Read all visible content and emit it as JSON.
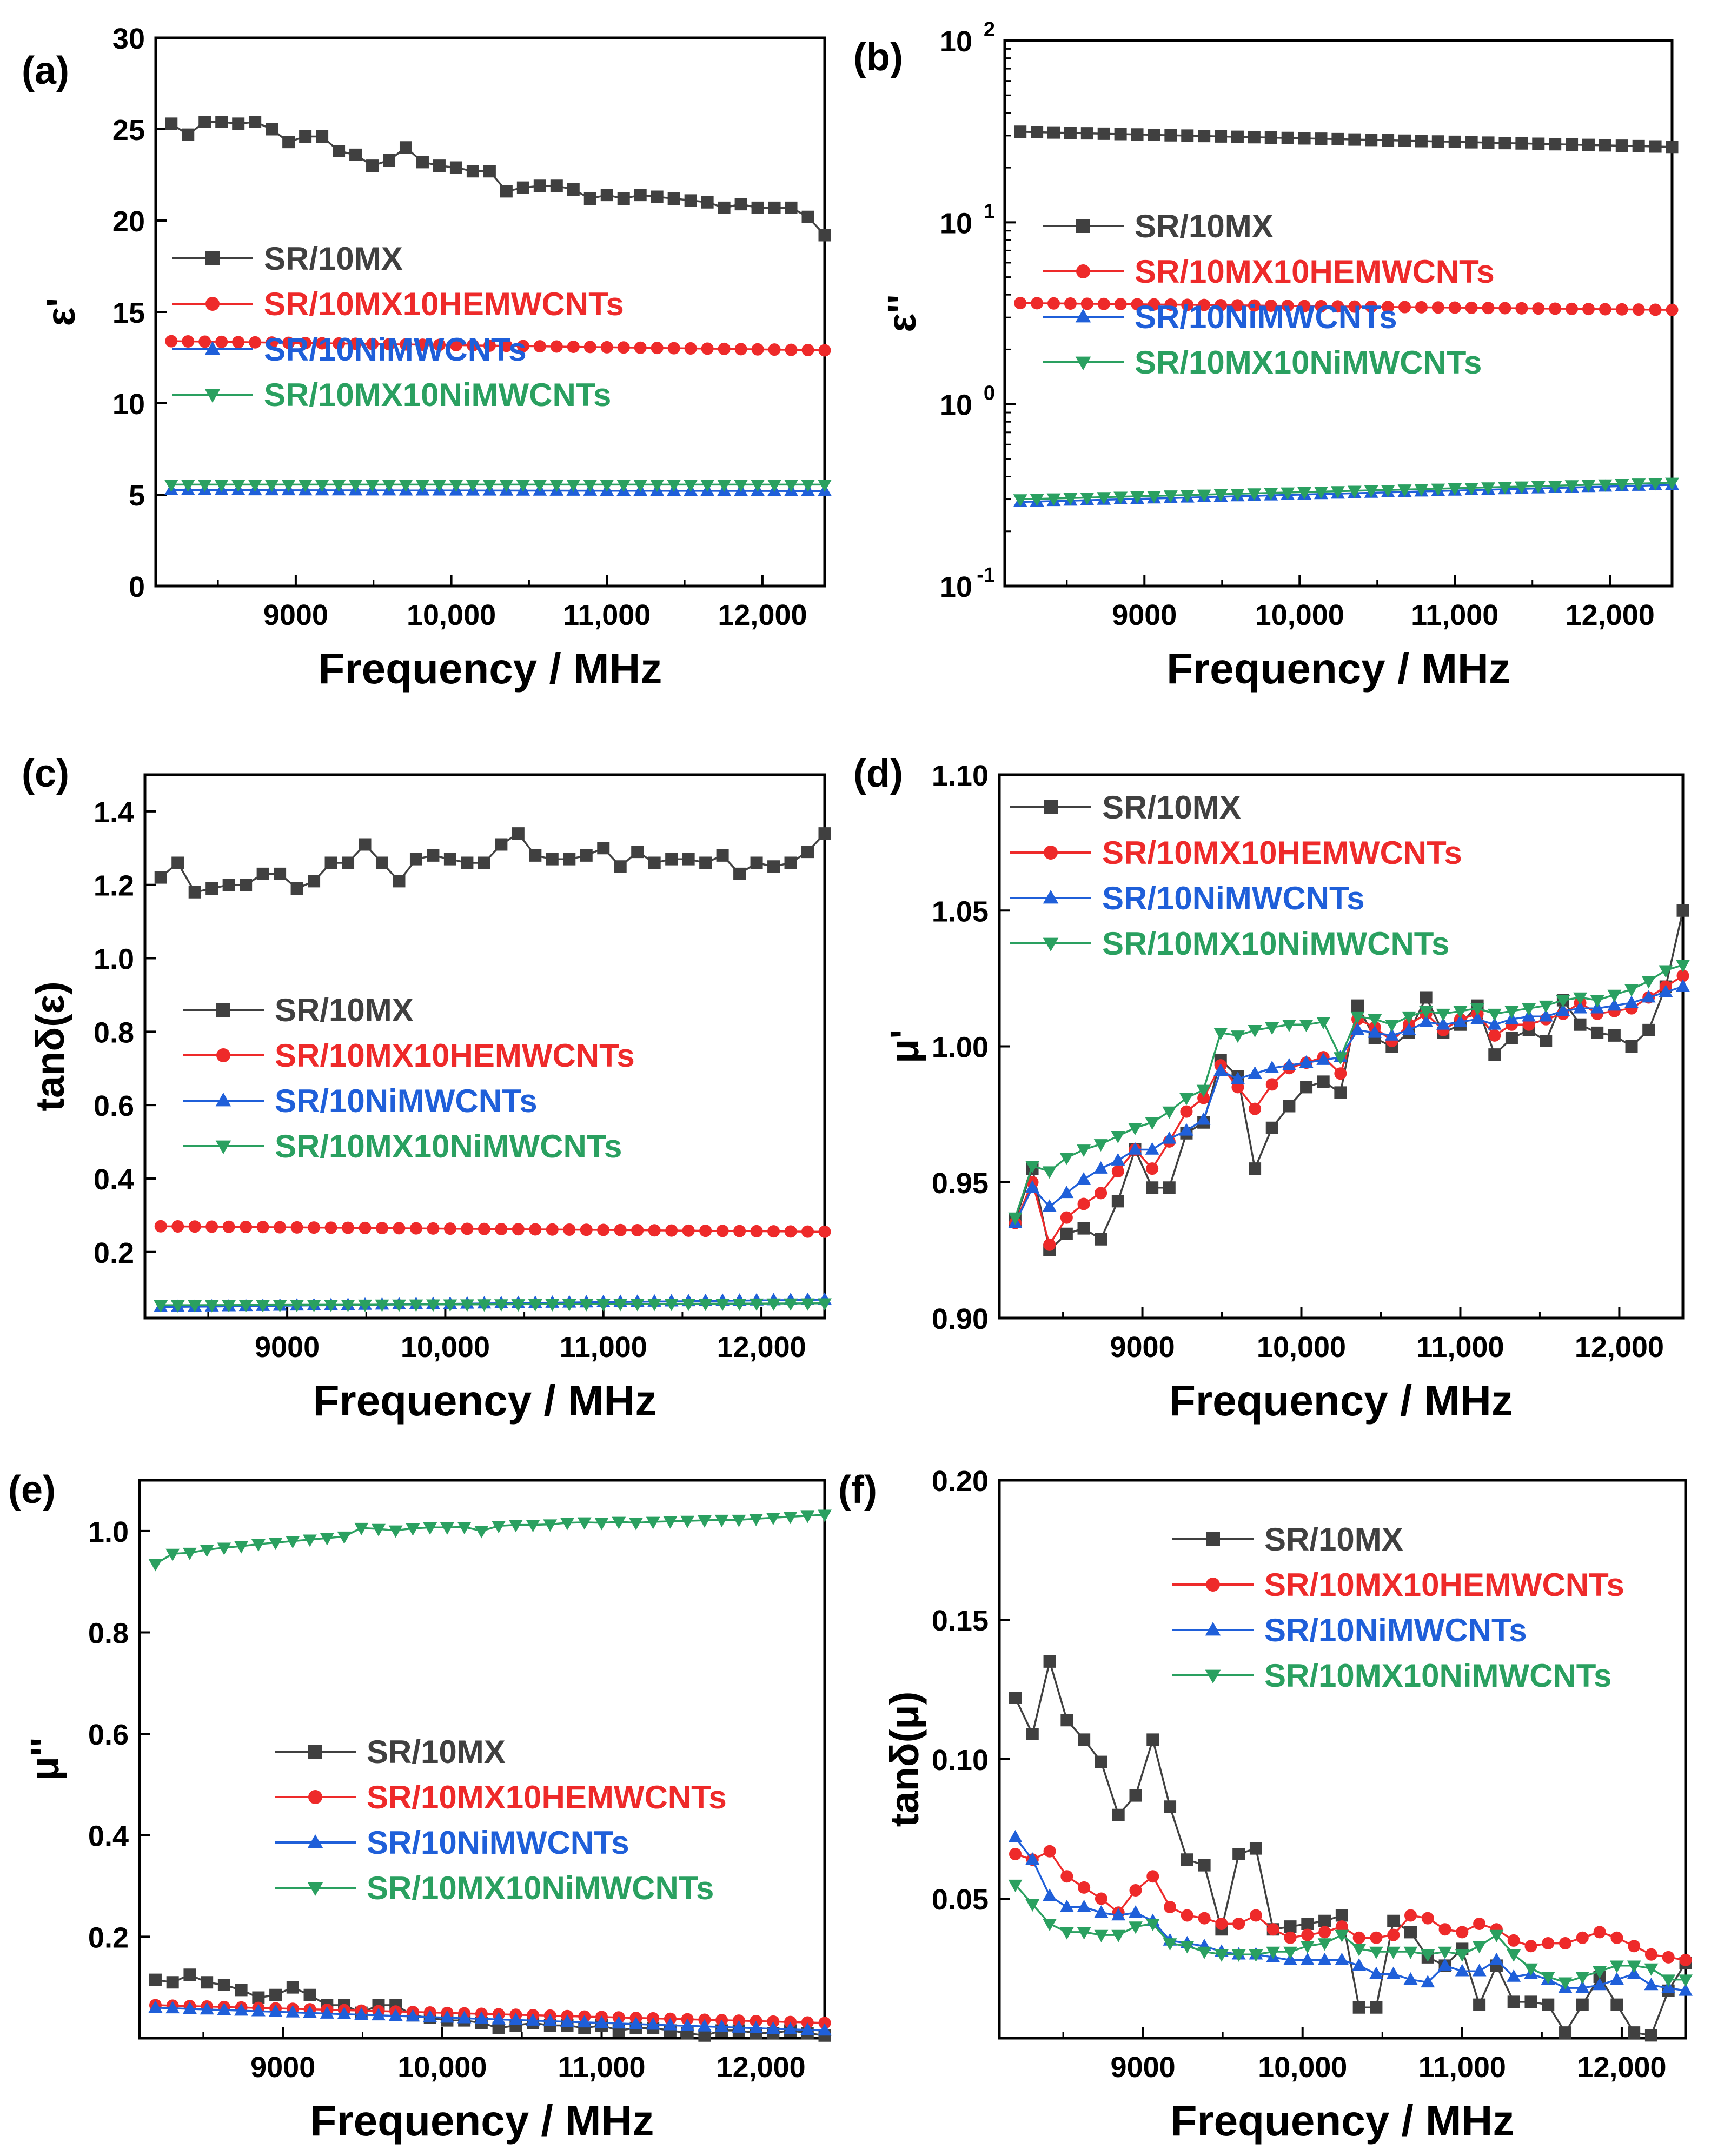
{
  "figure": {
    "colors": {
      "SR/10MX": "#404040",
      "SR/10MX10HEMWCNTs": "#ee2a2a",
      "SR/10NiMWCNTs": "#1f5fd9",
      "SR/10MX10NiMWCNTs": "#2aa060"
    },
    "series_names": [
      "SR/10MX",
      "SR/10MX10HEMWCNTs",
      "SR/10NiMWCNTs",
      "SR/10MX10NiMWCNTs"
    ]
  },
  "chart_data": [
    {
      "id": "a",
      "type": "line",
      "panel_label": "(a)",
      "title": "",
      "xlabel": "Frequency / MHz",
      "ylabel": "ε'",
      "xlim": [
        8100,
        12400
      ],
      "ylim": [
        0,
        30
      ],
      "yscale": "linear",
      "x_ticks": [
        9000,
        10000,
        11000,
        12000
      ],
      "x_tick_labels": [
        "9000",
        "10,000",
        "11,000",
        "12,000"
      ],
      "y_ticks": [
        0,
        5,
        10,
        15,
        20,
        25,
        30
      ],
      "y_tick_labels": [
        "0",
        "5",
        "10",
        "15",
        "20",
        "25",
        "30"
      ],
      "legend_position": "middle-left",
      "x": {
        "start": 8200,
        "end": 12400,
        "count": 40
      },
      "series": [
        {
          "name": "SR/10MX",
          "marker": "square",
          "values": [
            25.3,
            24.7,
            25.4,
            25.4,
            25.3,
            25.4,
            25.0,
            24.3,
            24.6,
            24.6,
            23.8,
            23.6,
            23.0,
            23.3,
            24.0,
            23.2,
            23.0,
            22.9,
            22.7,
            22.7,
            21.6,
            21.8,
            21.9,
            21.9,
            21.7,
            21.2,
            21.4,
            21.2,
            21.4,
            21.3,
            21.2,
            21.1,
            21.0,
            20.7,
            20.9,
            20.7,
            20.7,
            20.7,
            20.2,
            19.2
          ]
        },
        {
          "name": "SR/10MX10HEMWCNTs",
          "marker": "circle",
          "start": 13.4,
          "end": 12.9
        },
        {
          "name": "SR/10NiMWCNTs",
          "marker": "triangle-up",
          "start": 5.25,
          "end": 5.2
        },
        {
          "name": "SR/10MX10NiMWCNTs",
          "marker": "triangle-down",
          "start": 5.55,
          "end": 5.55
        }
      ]
    },
    {
      "id": "b",
      "type": "line",
      "panel_label": "(b)",
      "title": "",
      "xlabel": "Frequency / MHz",
      "ylabel": "ε''",
      "xlim": [
        8100,
        12400
      ],
      "ylim": [
        0.1,
        100
      ],
      "yscale": "log",
      "x_ticks": [
        9000,
        10000,
        11000,
        12000
      ],
      "x_tick_labels": [
        "9000",
        "10,000",
        "11,000",
        "12,000"
      ],
      "y_ticks": [
        0.1,
        1,
        10,
        100
      ],
      "y_tick_labels": [
        "10",
        "10",
        "10",
        "10"
      ],
      "y_tick_exponents": [
        "-1",
        "0",
        "1",
        "2"
      ],
      "legend_position": "middle-left",
      "x": {
        "start": 8200,
        "end": 12400,
        "count": 40
      },
      "series": [
        {
          "name": "SR/10MX",
          "marker": "square",
          "start": 31.5,
          "end": 26.0
        },
        {
          "name": "SR/10MX10HEMWCNTs",
          "marker": "circle",
          "start": 3.6,
          "end": 3.3
        },
        {
          "name": "SR/10NiMWCNTs",
          "marker": "triangle-up",
          "start": 0.29,
          "end": 0.36
        },
        {
          "name": "SR/10MX10NiMWCNTs",
          "marker": "triangle-down",
          "start": 0.3,
          "end": 0.37
        }
      ]
    },
    {
      "id": "c",
      "type": "line",
      "panel_label": "(c)",
      "title": "",
      "xlabel": "Frequency / MHz",
      "ylabel": "tanδ(ε)",
      "xlim": [
        8100,
        12400
      ],
      "ylim": [
        0.02,
        1.5
      ],
      "yscale": "linear",
      "x_ticks": [
        9000,
        10000,
        11000,
        12000
      ],
      "x_tick_labels": [
        "9000",
        "10,000",
        "11,000",
        "12,000"
      ],
      "y_ticks": [
        0.2,
        0.4,
        0.6,
        0.8,
        1.0,
        1.2,
        1.4
      ],
      "y_tick_labels": [
        "0.2",
        "0.4",
        "0.6",
        "0.8",
        "1.0",
        "1.2",
        "1.4"
      ],
      "legend_position": "middle-left",
      "x": {
        "start": 8200,
        "end": 12400,
        "count": 40
      },
      "series": [
        {
          "name": "SR/10MX",
          "marker": "square",
          "values": [
            1.22,
            1.26,
            1.18,
            1.19,
            1.2,
            1.2,
            1.23,
            1.23,
            1.19,
            1.21,
            1.26,
            1.26,
            1.31,
            1.26,
            1.21,
            1.27,
            1.28,
            1.27,
            1.26,
            1.26,
            1.31,
            1.34,
            1.28,
            1.27,
            1.27,
            1.28,
            1.3,
            1.25,
            1.29,
            1.26,
            1.27,
            1.27,
            1.26,
            1.28,
            1.23,
            1.26,
            1.25,
            1.26,
            1.29,
            1.34
          ]
        },
        {
          "name": "SR/10MX10HEMWCNTs",
          "marker": "circle",
          "start": 0.27,
          "end": 0.255
        },
        {
          "name": "SR/10NiMWCNTs",
          "marker": "triangle-up",
          "start": 0.05,
          "end": 0.07
        },
        {
          "name": "SR/10MX10NiMWCNTs",
          "marker": "triangle-down",
          "start": 0.055,
          "end": 0.06
        }
      ]
    },
    {
      "id": "d",
      "type": "line",
      "panel_label": "(d)",
      "title": "",
      "xlabel": "Frequency / MHz",
      "ylabel": "μ'",
      "xlim": [
        8100,
        12400
      ],
      "ylim": [
        0.9,
        1.1
      ],
      "yscale": "linear",
      "x_ticks": [
        9000,
        10000,
        11000,
        12000
      ],
      "x_tick_labels": [
        "9000",
        "10,000",
        "11,000",
        "12,000"
      ],
      "y_ticks": [
        0.9,
        0.95,
        1.0,
        1.05,
        1.1
      ],
      "y_tick_labels": [
        "0.90",
        "0.95",
        "1.00",
        "1.05",
        "1.10"
      ],
      "legend_position": "top-left",
      "x": {
        "start": 8200,
        "end": 12400,
        "count": 40
      },
      "series": [
        {
          "name": "SR/10MX",
          "marker": "square",
          "values": [
            0.936,
            0.955,
            0.925,
            0.931,
            0.933,
            0.929,
            0.943,
            0.962,
            0.948,
            0.948,
            0.968,
            0.972,
            0.995,
            0.989,
            0.955,
            0.97,
            0.978,
            0.985,
            0.987,
            0.983,
            1.015,
            1.003,
            1.0,
            1.005,
            1.018,
            1.005,
            1.008,
            1.015,
            0.997,
            1.003,
            1.006,
            1.002,
            1.017,
            1.008,
            1.005,
            1.004,
            1.0,
            1.006,
            1.022,
            1.05
          ]
        },
        {
          "name": "SR/10MX10HEMWCNTs",
          "marker": "circle",
          "values": [
            0.935,
            0.95,
            0.927,
            0.937,
            0.942,
            0.946,
            0.954,
            0.962,
            0.955,
            0.965,
            0.976,
            0.981,
            0.993,
            0.985,
            0.977,
            0.986,
            0.992,
            0.994,
            0.996,
            0.99,
            1.01,
            1.007,
            1.002,
            1.008,
            1.012,
            1.006,
            1.01,
            1.012,
            1.004,
            1.008,
            1.008,
            1.01,
            1.012,
            1.016,
            1.012,
            1.013,
            1.014,
            1.018,
            1.022,
            1.026
          ]
        },
        {
          "name": "SR/10NiMWCNTs",
          "marker": "triangle-up",
          "values": [
            0.935,
            0.948,
            0.941,
            0.946,
            0.951,
            0.955,
            0.958,
            0.962,
            0.962,
            0.966,
            0.969,
            0.973,
            0.991,
            0.988,
            0.99,
            0.992,
            0.993,
            0.994,
            0.995,
            0.996,
            1.006,
            1.005,
            1.004,
            1.006,
            1.009,
            1.008,
            1.009,
            1.01,
            1.008,
            1.01,
            1.011,
            1.011,
            1.013,
            1.014,
            1.014,
            1.015,
            1.016,
            1.018,
            1.02,
            1.022
          ]
        },
        {
          "name": "SR/10MX10NiMWCNTs",
          "marker": "triangle-down",
          "values": [
            0.937,
            0.956,
            0.954,
            0.959,
            0.962,
            0.964,
            0.967,
            0.97,
            0.972,
            0.976,
            0.981,
            0.984,
            1.005,
            1.004,
            1.006,
            1.007,
            1.008,
            1.008,
            1.009,
            0.996,
            1.011,
            1.01,
            1.008,
            1.011,
            1.013,
            1.012,
            1.013,
            1.014,
            1.012,
            1.013,
            1.014,
            1.015,
            1.017,
            1.018,
            1.017,
            1.019,
            1.021,
            1.024,
            1.028,
            1.03
          ]
        }
      ]
    },
    {
      "id": "e",
      "type": "line",
      "panel_label": "(e)",
      "title": "",
      "xlabel": "Frequency / MHz",
      "ylabel": "μ''",
      "xlim": [
        8100,
        12400
      ],
      "ylim": [
        0.0,
        1.1
      ],
      "yscale": "linear",
      "x_ticks": [
        9000,
        10000,
        11000,
        12000
      ],
      "x_tick_labels": [
        "9000",
        "10,000",
        "11,000",
        "12,000"
      ],
      "y_ticks": [
        0.2,
        0.4,
        0.6,
        0.8,
        1.0
      ],
      "y_tick_labels": [
        "0.2",
        "0.4",
        "0.6",
        "0.8",
        "1.0"
      ],
      "legend_position": "center",
      "x": {
        "start": 8200,
        "end": 12400,
        "count": 40
      },
      "series": [
        {
          "name": "SR/10MX",
          "marker": "square",
          "values": [
            0.115,
            0.11,
            0.125,
            0.11,
            0.105,
            0.095,
            0.08,
            0.085,
            0.1,
            0.085,
            0.065,
            0.065,
            0.05,
            0.065,
            0.065,
            0.045,
            0.04,
            0.035,
            0.035,
            0.03,
            0.02,
            0.025,
            0.03,
            0.025,
            0.025,
            0.02,
            0.025,
            0.015,
            0.02,
            0.02,
            0.015,
            0.01,
            0.005,
            0.015,
            0.015,
            0.01,
            0.01,
            0.015,
            0.01,
            0.005
          ]
        },
        {
          "name": "SR/10MX10HEMWCNTs",
          "marker": "circle",
          "start": 0.065,
          "end": 0.03
        },
        {
          "name": "SR/10NiMWCNTs",
          "marker": "triangle-up",
          "start": 0.06,
          "end": 0.015
        },
        {
          "name": "SR/10MX10NiMWCNTs",
          "marker": "triangle-down",
          "values": [
            0.935,
            0.955,
            0.957,
            0.963,
            0.967,
            0.97,
            0.974,
            0.977,
            0.98,
            0.983,
            0.986,
            0.989,
            1.006,
            1.004,
            1.001,
            1.005,
            1.007,
            1.007,
            1.008,
            1.0,
            1.01,
            1.012,
            1.012,
            1.013,
            1.016,
            1.017,
            1.016,
            1.018,
            1.016,
            1.018,
            1.019,
            1.02,
            1.021,
            1.022,
            1.022,
            1.024,
            1.026,
            1.028,
            1.03,
            1.032
          ]
        }
      ]
    },
    {
      "id": "f",
      "type": "line",
      "panel_label": "(f)",
      "title": "",
      "xlabel": "Frequency / MHz",
      "ylabel": "tanδ(μ)",
      "xlim": [
        8100,
        12400
      ],
      "ylim": [
        0.0,
        0.2
      ],
      "yscale": "linear",
      "x_ticks": [
        9000,
        10000,
        11000,
        12000
      ],
      "x_tick_labels": [
        "9000",
        "10,000",
        "11,000",
        "12,000"
      ],
      "y_ticks": [
        0.05,
        0.1,
        0.15,
        0.2
      ],
      "y_tick_labels": [
        "0.05",
        "0.10",
        "0.15",
        "0.20"
      ],
      "legend_position": "top-right",
      "x": {
        "start": 8200,
        "end": 12400,
        "count": 40
      },
      "series": [
        {
          "name": "SR/10MX",
          "marker": "square",
          "values": [
            0.122,
            0.109,
            0.135,
            0.114,
            0.107,
            0.099,
            0.08,
            0.087,
            0.107,
            0.083,
            0.064,
            0.062,
            0.039,
            0.066,
            0.068,
            0.039,
            0.04,
            0.041,
            0.042,
            0.044,
            0.011,
            0.011,
            0.042,
            0.038,
            0.029,
            0.026,
            0.032,
            0.012,
            0.026,
            0.013,
            0.013,
            0.012,
            0.002,
            0.012,
            0.022,
            0.012,
            0.002,
            0.001,
            0.017,
            0.027
          ]
        },
        {
          "name": "SR/10MX10HEMWCNTs",
          "marker": "circle",
          "values": [
            0.066,
            0.064,
            0.067,
            0.058,
            0.054,
            0.05,
            0.045,
            0.053,
            0.058,
            0.047,
            0.044,
            0.043,
            0.041,
            0.041,
            0.044,
            0.039,
            0.036,
            0.037,
            0.038,
            0.04,
            0.036,
            0.036,
            0.037,
            0.044,
            0.043,
            0.039,
            0.038,
            0.041,
            0.039,
            0.035,
            0.033,
            0.034,
            0.034,
            0.036,
            0.038,
            0.036,
            0.033,
            0.03,
            0.029,
            0.028
          ]
        },
        {
          "name": "SR/10NiMWCNTs",
          "marker": "triangle-up",
          "values": [
            0.072,
            0.064,
            0.051,
            0.047,
            0.047,
            0.045,
            0.044,
            0.045,
            0.042,
            0.035,
            0.034,
            0.033,
            0.031,
            0.03,
            0.03,
            0.029,
            0.028,
            0.028,
            0.028,
            0.028,
            0.026,
            0.023,
            0.023,
            0.021,
            0.02,
            0.026,
            0.024,
            0.024,
            0.028,
            0.022,
            0.023,
            0.021,
            0.018,
            0.018,
            0.019,
            0.021,
            0.023,
            0.019,
            0.018,
            0.017
          ]
        },
        {
          "name": "SR/10MX10NiMWCNTs",
          "marker": "triangle-down",
          "values": [
            0.055,
            0.048,
            0.041,
            0.038,
            0.038,
            0.037,
            0.037,
            0.04,
            0.041,
            0.034,
            0.033,
            0.031,
            0.03,
            0.03,
            0.03,
            0.031,
            0.031,
            0.033,
            0.034,
            0.037,
            0.032,
            0.031,
            0.031,
            0.031,
            0.03,
            0.031,
            0.03,
            0.033,
            0.037,
            0.03,
            0.025,
            0.022,
            0.02,
            0.022,
            0.024,
            0.026,
            0.026,
            0.025,
            0.021,
            0.021
          ]
        }
      ]
    }
  ]
}
